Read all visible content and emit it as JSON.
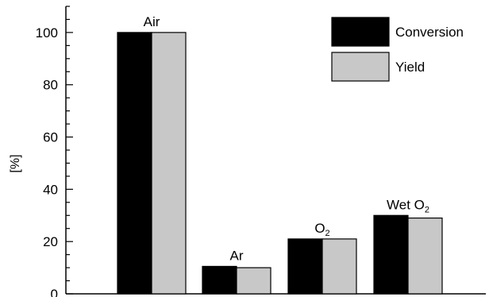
{
  "chart_data": {
    "type": "bar",
    "categories": [
      "Air",
      "Ar",
      "O2",
      "Wet O2"
    ],
    "category_labels": [
      {
        "text": "Air",
        "sub": ""
      },
      {
        "text": "Ar",
        "sub": ""
      },
      {
        "text": "O",
        "sub": "2"
      },
      {
        "text": "Wet O",
        "sub": "2"
      }
    ],
    "series": [
      {
        "name": "Conversion",
        "values": [
          100,
          10.5,
          21,
          30
        ],
        "color": "#000000"
      },
      {
        "name": "Yield",
        "values": [
          100,
          10,
          21,
          29
        ],
        "color": "#c8c8c8"
      }
    ],
    "ylabel": "[%]",
    "xlabel": "",
    "ylim": [
      0,
      110
    ],
    "yticks": [
      0,
      20,
      40,
      60,
      80,
      100
    ],
    "legend_position": "top-right",
    "grid": false
  }
}
